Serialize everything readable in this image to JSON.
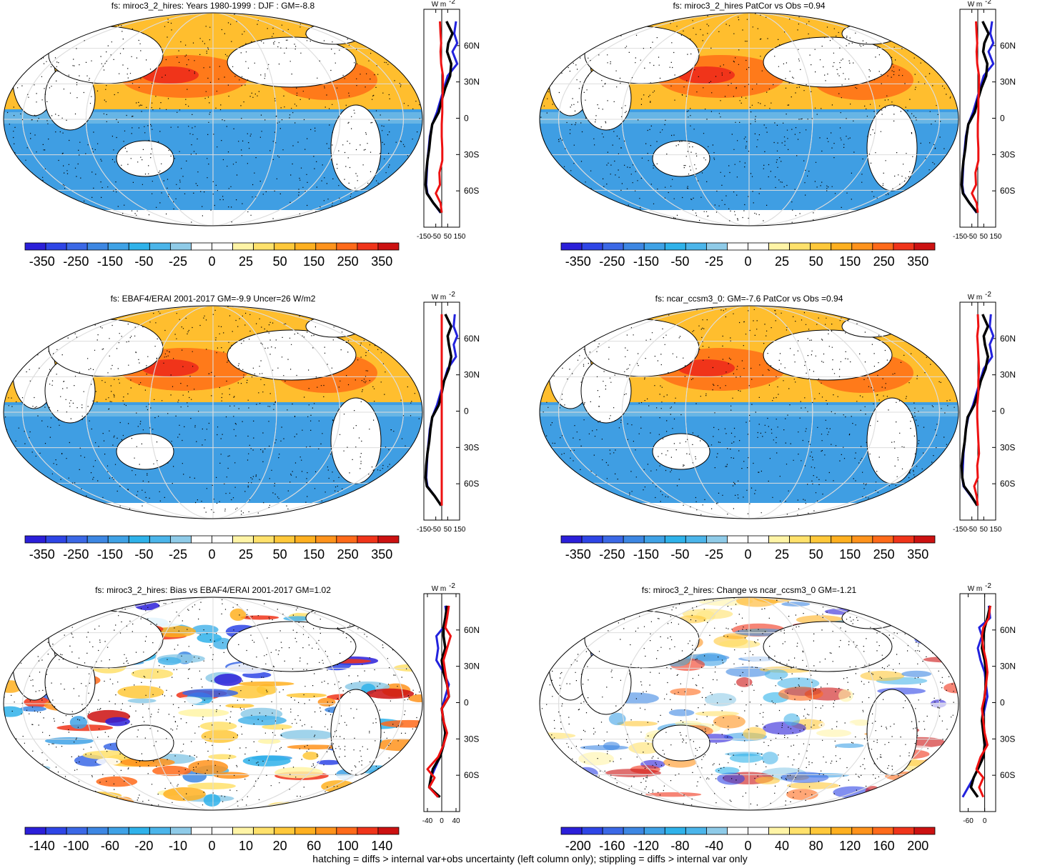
{
  "footnote": "hatching = diffs > internal var+obs uncertainty (left column only); stippling = diffs > internal var only",
  "colors": {
    "scale": [
      "#2b1fd9",
      "#2e45e6",
      "#3b68e6",
      "#3d87e3",
      "#3fa2e6",
      "#2fb2ea",
      "#4bb5ea",
      "#8fcbe8",
      "#ffffff",
      "#ffffff",
      "#fff4a6",
      "#ffe16b",
      "#ffc83a",
      "#ffb020",
      "#ff931c",
      "#ff6a1a",
      "#f0341a",
      "#cc1111"
    ],
    "curve_model": "#000000",
    "curve_obs": "#2222dd",
    "curve_diff": "#ee1111"
  },
  "chart_data": [
    {
      "type": "heatmap",
      "panel": "top-left",
      "title": "fs: miroc3_2_hires: Years 1980-1999 : DJF : GM=-8.8",
      "colorbar_labels": [
        "-350",
        "-250",
        "-150",
        "-50",
        "-25",
        "0",
        "25",
        "50",
        "150",
        "250",
        "350"
      ],
      "zonal_profile": {
        "unit_label": "W m",
        "unit_sup": "-2",
        "x_ticks": [
          "-150",
          "-50",
          "50",
          "150"
        ],
        "xlim": [
          -150,
          150
        ],
        "lat_ticks": [
          "60N",
          "30N",
          "0",
          "30S",
          "60S"
        ],
        "series": [
          {
            "role": "obs",
            "lat": [
              80,
              70,
              62,
              55,
              45,
              35,
              25,
              15,
              5,
              -5,
              -15,
              -25,
              -35,
              -45,
              -55,
              -62,
              -70,
              -78
            ],
            "values": [
              120,
              105,
              130,
              90,
              130,
              50,
              20,
              -10,
              -40,
              -80,
              -100,
              -110,
              -120,
              -125,
              -130,
              -120,
              -70,
              -10
            ]
          },
          {
            "role": "model",
            "lat": [
              80,
              70,
              62,
              55,
              45,
              35,
              25,
              15,
              5,
              -5,
              -15,
              -25,
              -35,
              -45,
              -55,
              -62,
              -70,
              -78
            ],
            "values": [
              40,
              90,
              55,
              45,
              80,
              70,
              30,
              0,
              -25,
              -80,
              -95,
              -105,
              -120,
              -130,
              -135,
              -125,
              -70,
              -5
            ]
          },
          {
            "role": "diff",
            "lat": [
              80,
              70,
              62,
              55,
              45,
              35,
              25,
              15,
              5,
              -5,
              -15,
              -25,
              -35,
              -45,
              -55,
              -62,
              -70,
              -78
            ],
            "values": [
              -15,
              -10,
              -5,
              -10,
              -5,
              10,
              10,
              5,
              5,
              0,
              0,
              5,
              5,
              -20,
              -15,
              -50,
              -10,
              0
            ]
          }
        ]
      }
    },
    {
      "type": "heatmap",
      "panel": "top-right",
      "title": "fs: miroc3_2_hires PatCor vs Obs =0.94",
      "colorbar_labels": [
        "-350",
        "-250",
        "-150",
        "-50",
        "-25",
        "0",
        "25",
        "50",
        "150",
        "250",
        "350"
      ],
      "zonal_profile": {
        "unit_label": "W m",
        "unit_sup": "-2",
        "x_ticks": [
          "-150",
          "-50",
          "50",
          "150"
        ],
        "xlim": [
          -150,
          150
        ],
        "lat_ticks": [
          "60N",
          "30N",
          "0",
          "30S",
          "60S"
        ],
        "series": [
          {
            "role": "obs",
            "lat": [
              80,
              70,
              62,
              55,
              45,
              35,
              25,
              15,
              5,
              -5,
              -15,
              -25,
              -35,
              -45,
              -55,
              -62,
              -70,
              -78
            ],
            "values": [
              120,
              105,
              130,
              90,
              130,
              50,
              20,
              -10,
              -40,
              -80,
              -100,
              -110,
              -120,
              -125,
              -130,
              -120,
              -70,
              -10
            ]
          },
          {
            "role": "model",
            "lat": [
              80,
              70,
              62,
              55,
              45,
              35,
              25,
              15,
              5,
              -5,
              -15,
              -25,
              -35,
              -45,
              -55,
              -62,
              -70,
              -78
            ],
            "values": [
              40,
              90,
              55,
              45,
              80,
              70,
              30,
              0,
              -25,
              -80,
              -95,
              -105,
              -120,
              -130,
              -135,
              -125,
              -70,
              -5
            ]
          },
          {
            "role": "diff",
            "lat": [
              80,
              70,
              62,
              55,
              45,
              35,
              25,
              15,
              5,
              -5,
              -15,
              -25,
              -35,
              -45,
              -55,
              -62,
              -70,
              -78
            ],
            "values": [
              -15,
              -10,
              -5,
              -10,
              -5,
              10,
              10,
              5,
              5,
              0,
              0,
              5,
              5,
              -20,
              -15,
              -50,
              -10,
              0
            ]
          }
        ]
      }
    },
    {
      "type": "heatmap",
      "panel": "middle-left",
      "title": "fs: EBAF4/ERAI 2001-2017 GM=-9.9 Uncer=26 W/m2",
      "colorbar_labels": [
        "-350",
        "-250",
        "-150",
        "-50",
        "-25",
        "0",
        "25",
        "50",
        "150",
        "250",
        "350"
      ],
      "zonal_profile": {
        "unit_label": "W m",
        "unit_sup": "-2",
        "x_ticks": [
          "-150",
          "-50",
          "50",
          "150"
        ],
        "xlim": [
          -150,
          150
        ],
        "lat_ticks": [
          "60N",
          "30N",
          "0",
          "30S",
          "60S"
        ],
        "series": [
          {
            "role": "obs",
            "lat": [
              80,
              70,
              62,
              55,
              45,
              35,
              25,
              15,
              5,
              -5,
              -15,
              -25,
              -35,
              -45,
              -55,
              -62,
              -70,
              -78
            ],
            "values": [
              110,
              100,
              130,
              100,
              120,
              50,
              20,
              -10,
              -40,
              -80,
              -100,
              -110,
              -120,
              -125,
              -130,
              -120,
              -60,
              -5
            ]
          },
          {
            "role": "model",
            "lat": [
              80,
              70,
              62,
              55,
              45,
              35,
              25,
              15,
              5,
              -5,
              -15,
              -25,
              -35,
              -45,
              -55,
              -62,
              -70,
              -78
            ],
            "values": [
              30,
              80,
              50,
              60,
              80,
              60,
              20,
              0,
              -25,
              -80,
              -95,
              -105,
              -120,
              -130,
              -135,
              -125,
              -60,
              -5
            ]
          },
          {
            "role": "diff",
            "lat": [
              80,
              70,
              62,
              55,
              45,
              35,
              25,
              15,
              5,
              -5,
              -15,
              -25,
              -35,
              -45,
              -55,
              -62,
              -70,
              -78
            ],
            "values": [
              0,
              0,
              0,
              0,
              0,
              0,
              0,
              0,
              0,
              0,
              0,
              0,
              0,
              0,
              0,
              0,
              0,
              0
            ]
          }
        ]
      }
    },
    {
      "type": "heatmap",
      "panel": "middle-right",
      "title": "fs: ncar_ccsm3_0: GM=-7.6 PatCor vs Obs =0.94",
      "colorbar_labels": [
        "-350",
        "-250",
        "-150",
        "-50",
        "-25",
        "0",
        "25",
        "50",
        "150",
        "250",
        "350"
      ],
      "zonal_profile": {
        "unit_label": "W m",
        "unit_sup": "-2",
        "x_ticks": [
          "-150",
          "-50",
          "50",
          "150"
        ],
        "xlim": [
          -150,
          150
        ],
        "lat_ticks": [
          "60N",
          "30N",
          "0",
          "30S",
          "60S"
        ],
        "series": [
          {
            "role": "obs",
            "lat": [
              80,
              70,
              62,
              55,
              45,
              35,
              25,
              15,
              5,
              -5,
              -15,
              -25,
              -35,
              -45,
              -55,
              -62,
              -70,
              -78
            ],
            "values": [
              110,
              100,
              130,
              100,
              120,
              50,
              20,
              -10,
              -40,
              -80,
              -100,
              -110,
              -120,
              -125,
              -130,
              -120,
              -60,
              -5
            ]
          },
          {
            "role": "model",
            "lat": [
              80,
              70,
              62,
              55,
              45,
              35,
              25,
              15,
              5,
              -5,
              -15,
              -25,
              -35,
              -45,
              -55,
              -62,
              -70,
              -78
            ],
            "values": [
              40,
              85,
              50,
              60,
              85,
              65,
              25,
              0,
              -30,
              -85,
              -100,
              -110,
              -125,
              -135,
              -130,
              -115,
              -55,
              -5
            ]
          },
          {
            "role": "diff",
            "lat": [
              80,
              70,
              62,
              55,
              45,
              35,
              25,
              15,
              5,
              -5,
              -15,
              -25,
              -35,
              -45,
              -55,
              -62,
              -70,
              -78
            ],
            "values": [
              0,
              5,
              -5,
              0,
              5,
              10,
              5,
              5,
              -5,
              -5,
              0,
              5,
              10,
              -5,
              0,
              -30,
              -10,
              0
            ]
          }
        ]
      }
    },
    {
      "type": "heatmap",
      "panel": "bottom-left",
      "title": "fs: miroc3_2_hires: Bias vs EBAF4/ERAI 2001-2017 GM=1.02",
      "colorbar_labels": [
        "-140",
        "-100",
        "-60",
        "-20",
        "-10",
        "0",
        "10",
        "20",
        "60",
        "100",
        "140"
      ],
      "zonal_profile": {
        "unit_label": "W m",
        "unit_sup": "-2",
        "x_ticks": [
          "-40",
          "0",
          "40"
        ],
        "xlim": [
          -50,
          50
        ],
        "lat_ticks": [
          "60N",
          "30N",
          "0",
          "30S",
          "60S"
        ],
        "series": [
          {
            "role": "obs",
            "lat": [
              80,
              70,
              62,
              55,
              45,
              35,
              25,
              15,
              5,
              -5,
              -15,
              -25,
              -35,
              -45,
              -55,
              -62,
              -70,
              -78
            ],
            "values": [
              10,
              15,
              5,
              -15,
              -10,
              -15,
              5,
              20,
              10,
              0,
              5,
              10,
              5,
              -5,
              -20,
              -30,
              -35,
              -10
            ]
          },
          {
            "role": "model",
            "lat": [
              80,
              70,
              62,
              55,
              45,
              35,
              25,
              15,
              5,
              -5,
              -15,
              -25,
              -35,
              -45,
              -55,
              -62,
              -70,
              -78
            ],
            "values": [
              15,
              10,
              5,
              5,
              10,
              0,
              5,
              15,
              20,
              0,
              5,
              10,
              5,
              -5,
              -25,
              -30,
              -35,
              -5
            ]
          },
          {
            "role": "diff",
            "lat": [
              80,
              70,
              62,
              55,
              45,
              35,
              25,
              15,
              5,
              -5,
              -15,
              -25,
              -35,
              -45,
              -55,
              -62,
              -70,
              -78
            ],
            "values": [
              20,
              15,
              10,
              25,
              15,
              5,
              10,
              15,
              20,
              0,
              5,
              15,
              5,
              -10,
              -40,
              -20,
              -35,
              -10
            ]
          }
        ]
      }
    },
    {
      "type": "heatmap",
      "panel": "bottom-right",
      "title": "fs: miroc3_2_hires: Change vs ncar_ccsm3_0 GM=-1.21",
      "colorbar_labels": [
        "-200",
        "-160",
        "-120",
        "-80",
        "-40",
        "0",
        "40",
        "80",
        "120",
        "160",
        "200"
      ],
      "zonal_profile": {
        "unit_label": "W m",
        "unit_sup": "-2",
        "x_ticks": [
          "-60",
          "0"
        ],
        "xlim": [
          -90,
          40
        ],
        "lat_ticks": [
          "60N",
          "30N",
          "0",
          "30S",
          "60S"
        ],
        "series": [
          {
            "role": "obs",
            "lat": [
              80,
              70,
              62,
              55,
              45,
              35,
              25,
              15,
              5,
              -5,
              -15,
              -25,
              -35,
              -45,
              -55,
              -62,
              -70,
              -78
            ],
            "values": [
              15,
              20,
              -20,
              -10,
              -25,
              -15,
              0,
              5,
              10,
              0,
              -10,
              -5,
              5,
              -10,
              -25,
              -40,
              -60,
              -80
            ]
          },
          {
            "role": "model",
            "lat": [
              80,
              70,
              62,
              55,
              45,
              35,
              25,
              15,
              5,
              -5,
              -15,
              -25,
              -35,
              -45,
              -55,
              -62,
              -70,
              -78
            ],
            "values": [
              20,
              10,
              0,
              -5,
              -10,
              0,
              5,
              5,
              0,
              -5,
              -10,
              -5,
              0,
              -5,
              -25,
              -40,
              -50,
              -25
            ]
          },
          {
            "role": "diff",
            "lat": [
              80,
              70,
              62,
              55,
              45,
              35,
              25,
              15,
              5,
              -5,
              -15,
              -25,
              -35,
              -45,
              -55,
              -62,
              -70,
              -78
            ],
            "values": [
              20,
              15,
              -5,
              -10,
              -5,
              5,
              10,
              5,
              0,
              -10,
              -5,
              0,
              10,
              -15,
              -30,
              -5,
              -20,
              -5
            ]
          }
        ]
      }
    }
  ]
}
